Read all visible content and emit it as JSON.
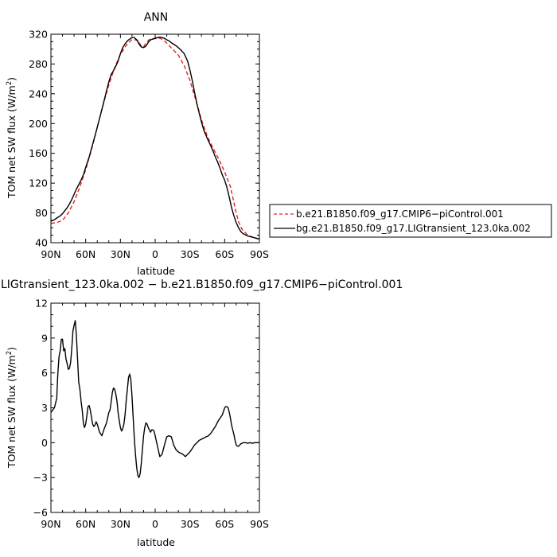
{
  "chart_data": [
    {
      "type": "line",
      "title": "ANN",
      "xlabel": "latitude",
      "ylabel_main": "TOM net SW flux (W/m",
      "ylabel_sup": "2",
      "ylabel_close": ")",
      "xlim": [
        90,
        -90
      ],
      "ylim": [
        40,
        320
      ],
      "x_ticks": [
        {
          "value": 90,
          "label": "90N"
        },
        {
          "value": 60,
          "label": "60N"
        },
        {
          "value": 30,
          "label": "30N"
        },
        {
          "value": 0,
          "label": "0"
        },
        {
          "value": -30,
          "label": "30S"
        },
        {
          "value": -60,
          "label": "60S"
        },
        {
          "value": -90,
          "label": "90S"
        }
      ],
      "y_ticks": [
        40,
        80,
        120,
        160,
        200,
        240,
        280,
        320
      ],
      "legend_position": "right",
      "series": [
        {
          "name": "b.e21.B1850.f09_g17.CMIP6−piControl.001",
          "color": "#e8211c",
          "dash": "dashed",
          "x": [
            90,
            85,
            80,
            75,
            70,
            65,
            60,
            55,
            50,
            45,
            40,
            35,
            30,
            25,
            20,
            15,
            12,
            10,
            8,
            5,
            3,
            0,
            -3,
            -5,
            -8,
            -10,
            -15,
            -20,
            -25,
            -30,
            -35,
            -40,
            -45,
            -50,
            -55,
            -60,
            -65,
            -70,
            -72,
            -75,
            -80,
            -85,
            -90
          ],
          "y": [
            66,
            67,
            70,
            80,
            95,
            115,
            138,
            165,
            195,
            225,
            252,
            275,
            293,
            305,
            313,
            312,
            304,
            303,
            308,
            313,
            314,
            314,
            315,
            314,
            311,
            308,
            300,
            292,
            278,
            258,
            232,
            205,
            183,
            167,
            152,
            135,
            115,
            80,
            68,
            58,
            50,
            47,
            45
          ]
        },
        {
          "name": "bg.e21.B1850.f09_g17.LIGtransient_123.0ka.002",
          "color": "#000000",
          "dash": "solid",
          "x": [
            90,
            88,
            85,
            82,
            80,
            78,
            76,
            74,
            72,
            70,
            68,
            66,
            64,
            62,
            60,
            57,
            54,
            51,
            48,
            45,
            42,
            40,
            38,
            36,
            34,
            32,
            30,
            28,
            26,
            24,
            22,
            20,
            18,
            16,
            15,
            14,
            12,
            10,
            8,
            6,
            4,
            2,
            0,
            -2,
            -4,
            -6,
            -8,
            -10,
            -12,
            -14,
            -16,
            -18,
            -20,
            -22,
            -25,
            -28,
            -30,
            -32,
            -34,
            -36,
            -38,
            -40,
            -42,
            -45,
            -48,
            -50,
            -52,
            -54,
            -56,
            -58,
            -60,
            -62,
            -64,
            -66,
            -68,
            -70,
            -72,
            -74,
            -76,
            -78,
            -80,
            -82,
            -84,
            -86,
            -88,
            -90
          ],
          "y": [
            69,
            70,
            73,
            76,
            79,
            83,
            87,
            92,
            98,
            105,
            112,
            118,
            124,
            131,
            141,
            155,
            172,
            189,
            207,
            225,
            244,
            256,
            266,
            271,
            277,
            284,
            294,
            302,
            307,
            311,
            313.5,
            315.5,
            315.5,
            312.5,
            310,
            307,
            303,
            302,
            304,
            309,
            312.5,
            313.5,
            314.5,
            315.5,
            316,
            315.5,
            314.5,
            312.5,
            311,
            308.5,
            306.5,
            304.5,
            302,
            299,
            294,
            284,
            272,
            258,
            242,
            227,
            214,
            202,
            191,
            180,
            170,
            163,
            155,
            148,
            140,
            131,
            124,
            114,
            101,
            87,
            76,
            67,
            60,
            55,
            52,
            50.5,
            49,
            48,
            47.5,
            46.5,
            45.5,
            45
          ]
        }
      ]
    },
    {
      "type": "line",
      "title": "LIGtransient_123.0ka.002 − b.e21.B1850.f09_g17.CMIP6−piControl.001",
      "xlabel": "latitude",
      "ylabel_main": "TOM net SW flux (W/m",
      "ylabel_sup": "2",
      "ylabel_close": ")",
      "xlim": [
        90,
        -90
      ],
      "ylim": [
        -6,
        12
      ],
      "x_ticks": [
        {
          "value": 90,
          "label": "90N"
        },
        {
          "value": 60,
          "label": "60N"
        },
        {
          "value": 30,
          "label": "30N"
        },
        {
          "value": 0,
          "label": "0"
        },
        {
          "value": -30,
          "label": "30S"
        },
        {
          "value": -60,
          "label": "60S"
        },
        {
          "value": -90,
          "label": "90S"
        }
      ],
      "y_ticks": [
        -6,
        -3,
        0,
        3,
        6,
        9,
        12
      ],
      "series": [
        {
          "color": "#000000",
          "dash": "solid",
          "x": [
            90,
            87,
            85,
            84,
            83,
            82,
            81,
            80,
            79,
            78,
            77,
            76,
            75,
            74,
            73,
            72,
            71,
            70,
            69,
            68,
            67,
            66,
            65,
            64,
            63,
            62,
            61,
            60,
            59,
            58,
            57,
            56,
            55,
            54,
            53,
            52,
            51,
            50,
            48,
            46,
            44,
            42,
            40,
            39,
            38,
            37,
            36,
            35,
            34,
            33,
            32,
            31,
            30,
            29,
            28,
            27,
            26,
            25,
            24,
            23,
            22,
            21,
            20,
            19,
            18,
            17,
            16,
            15,
            14,
            13,
            12,
            11,
            10,
            9,
            8,
            7,
            6,
            5,
            4,
            3,
            2,
            1,
            0,
            -2,
            -4,
            -6,
            -8,
            -10,
            -12,
            -14,
            -16,
            -18,
            -20,
            -22,
            -24,
            -26,
            -28,
            -30,
            -32,
            -34,
            -36,
            -38,
            -40,
            -42,
            -44,
            -46,
            -48,
            -50,
            -52,
            -54,
            -56,
            -58,
            -59,
            -60,
            -61,
            -62,
            -63,
            -64,
            -65,
            -66,
            -67,
            -68,
            -69,
            -70,
            -71,
            -72,
            -74,
            -76,
            -78,
            -80,
            -82,
            -84,
            -86,
            -88,
            -90
          ],
          "y": [
            2.6,
            3.0,
            3.8,
            6.0,
            7.4,
            7.9,
            8.9,
            8.9,
            7.9,
            8.1,
            7.2,
            6.8,
            6.3,
            6.4,
            6.9,
            8.1,
            9.6,
            10.1,
            10.5,
            9.2,
            7.2,
            5.2,
            4.6,
            3.6,
            2.8,
            1.7,
            1.3,
            1.6,
            2.3,
            3.1,
            3.2,
            2.8,
            2.2,
            1.6,
            1.4,
            1.5,
            1.8,
            1.6,
            0.9,
            0.6,
            1.2,
            1.7,
            2.6,
            2.8,
            3.5,
            4.3,
            4.7,
            4.6,
            4.2,
            3.6,
            2.6,
            1.9,
            1.3,
            1.0,
            1.2,
            1.6,
            2.4,
            3.6,
            4.6,
            5.6,
            5.9,
            5.4,
            4.0,
            2.2,
            0.4,
            -1.0,
            -2.1,
            -2.8,
            -3.0,
            -2.7,
            -1.8,
            -0.6,
            0.6,
            1.3,
            1.7,
            1.6,
            1.3,
            1.1,
            0.9,
            1.1,
            1.1,
            1.0,
            0.6,
            -0.3,
            -1.2,
            -1.0,
            -0.2,
            0.5,
            0.6,
            0.5,
            -0.2,
            -0.6,
            -0.8,
            -0.9,
            -1.0,
            -1.2,
            -1.0,
            -0.8,
            -0.5,
            -0.2,
            0.0,
            0.2,
            0.3,
            0.4,
            0.5,
            0.6,
            0.8,
            1.1,
            1.4,
            1.8,
            2.1,
            2.4,
            2.7,
            3.0,
            3.1,
            3.1,
            3.0,
            2.6,
            2.1,
            1.5,
            1.1,
            0.7,
            0.2,
            -0.2,
            -0.3,
            -0.3,
            -0.1,
            0.0,
            0.0,
            -0.05,
            0.0,
            -0.05,
            0.0,
            0.0,
            0.0
          ]
        }
      ]
    }
  ]
}
